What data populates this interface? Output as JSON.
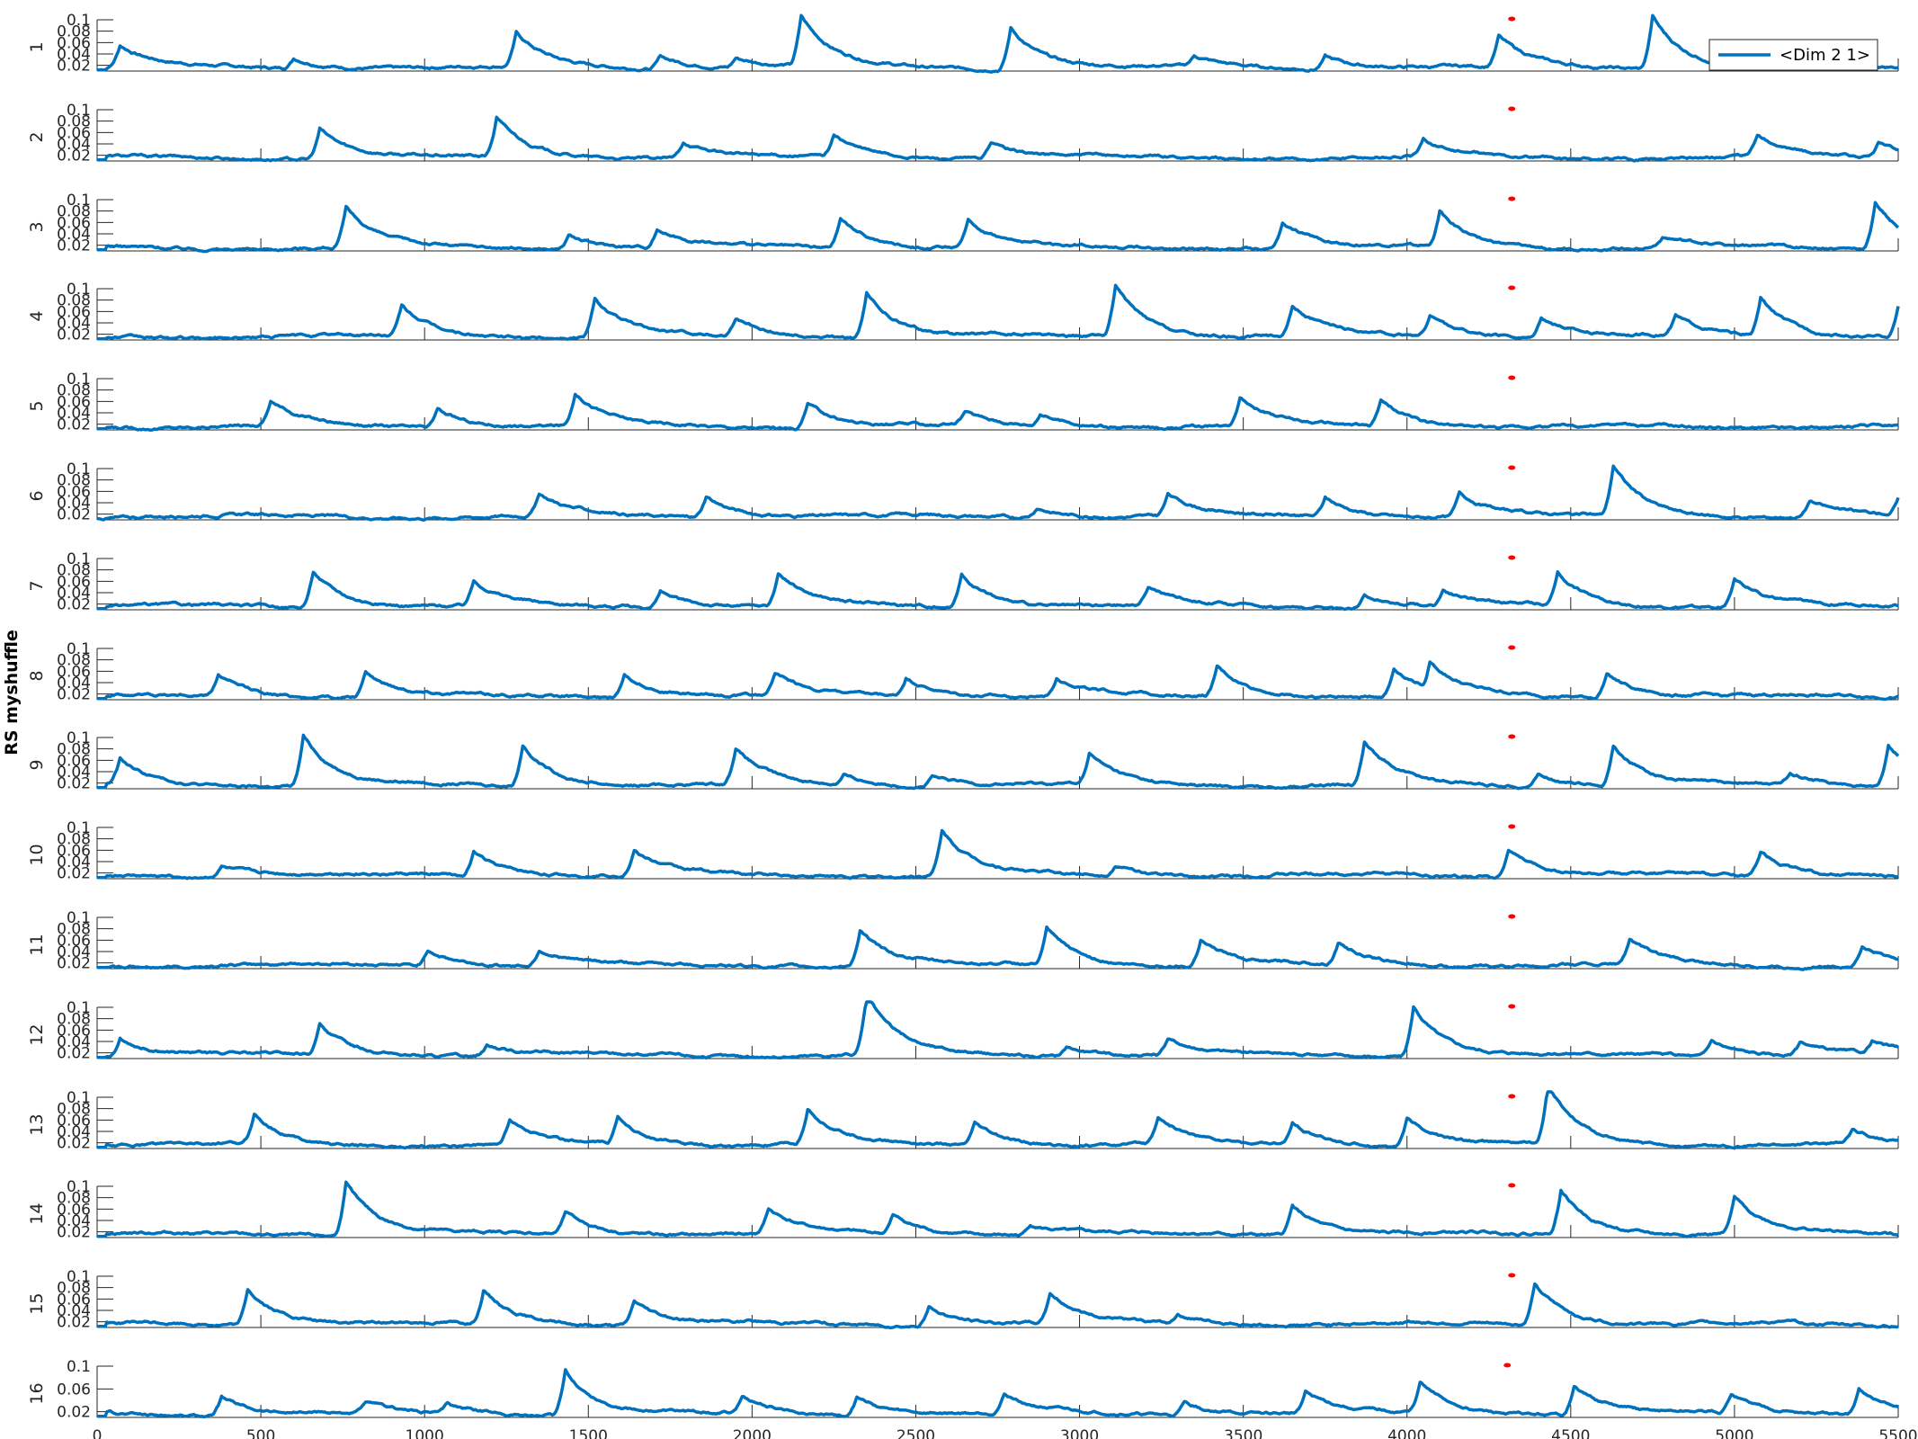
{
  "chart_data": {
    "type": "line",
    "ylabel": "RS myshuffle",
    "xlim": [
      0,
      5500
    ],
    "x_ticks": [
      0,
      500,
      1000,
      1500,
      2000,
      2500,
      3000,
      3500,
      4000,
      4500,
      5000,
      5500
    ],
    "ylim": [
      0.01,
      0.1
    ],
    "y_ticks": [
      0.02,
      0.04,
      0.06,
      0.08,
      0.1
    ],
    "panel_y_tick_labels": [
      "0.02",
      "0.04",
      "0.06",
      "0.08",
      "0.1"
    ],
    "last_panel_y_tick_labels": [
      "0.02",
      "0.06",
      "0.1"
    ],
    "legend": {
      "entries": [
        "<Dim 2 1>"
      ],
      "location": "top-right"
    },
    "series_color": "#0072BD",
    "marker_color": "#FF0000",
    "marker_x": 4320,
    "panels": [
      {
        "label": "1",
        "peaks": [
          [
            70,
            0.05
          ],
          [
            600,
            0.03
          ],
          [
            1280,
            0.07
          ],
          [
            1720,
            0.035
          ],
          [
            1950,
            0.03
          ],
          [
            2150,
            0.1
          ],
          [
            2790,
            0.085
          ],
          [
            3350,
            0.03
          ],
          [
            3750,
            0.035
          ],
          [
            4280,
            0.065
          ],
          [
            4750,
            0.105
          ]
        ]
      },
      {
        "label": "2",
        "peaks": [
          [
            680,
            0.065
          ],
          [
            1220,
            0.08
          ],
          [
            1790,
            0.04
          ],
          [
            2250,
            0.05
          ],
          [
            2730,
            0.04
          ],
          [
            4050,
            0.04
          ],
          [
            5070,
            0.05
          ],
          [
            5440,
            0.04
          ]
        ]
      },
      {
        "label": "3",
        "peaks": [
          [
            760,
            0.08
          ],
          [
            1440,
            0.035
          ],
          [
            1710,
            0.045
          ],
          [
            2270,
            0.065
          ],
          [
            2660,
            0.06
          ],
          [
            3620,
            0.06
          ],
          [
            4100,
            0.075
          ],
          [
            4780,
            0.03
          ],
          [
            5430,
            0.095
          ]
        ]
      },
      {
        "label": "4",
        "peaks": [
          [
            930,
            0.065
          ],
          [
            1520,
            0.08
          ],
          [
            1950,
            0.045
          ],
          [
            2350,
            0.09
          ],
          [
            3110,
            0.105
          ],
          [
            3650,
            0.065
          ],
          [
            4070,
            0.05
          ],
          [
            4410,
            0.05
          ],
          [
            4820,
            0.045
          ],
          [
            5080,
            0.08
          ],
          [
            5500,
            0.065
          ]
        ]
      },
      {
        "label": "5",
        "peaks": [
          [
            530,
            0.055
          ],
          [
            1040,
            0.045
          ],
          [
            1460,
            0.07
          ],
          [
            2170,
            0.055
          ],
          [
            2650,
            0.035
          ],
          [
            2880,
            0.035
          ],
          [
            3490,
            0.065
          ],
          [
            3920,
            0.06
          ]
        ]
      },
      {
        "label": "6",
        "peaks": [
          [
            1350,
            0.05
          ],
          [
            1860,
            0.05
          ],
          [
            2870,
            0.03
          ],
          [
            3270,
            0.05
          ],
          [
            3750,
            0.045
          ],
          [
            4160,
            0.055
          ],
          [
            4630,
            0.1
          ],
          [
            5230,
            0.04
          ],
          [
            5500,
            0.04
          ]
        ]
      },
      {
        "label": "7",
        "peaks": [
          [
            660,
            0.075
          ],
          [
            1150,
            0.055
          ],
          [
            1720,
            0.04
          ],
          [
            2080,
            0.07
          ],
          [
            2640,
            0.07
          ],
          [
            3210,
            0.045
          ],
          [
            3870,
            0.035
          ],
          [
            4110,
            0.04
          ],
          [
            4460,
            0.07
          ],
          [
            5000,
            0.065
          ]
        ]
      },
      {
        "label": "8",
        "peaks": [
          [
            370,
            0.05
          ],
          [
            820,
            0.055
          ],
          [
            1610,
            0.055
          ],
          [
            2070,
            0.05
          ],
          [
            2470,
            0.045
          ],
          [
            2930,
            0.045
          ],
          [
            3420,
            0.065
          ],
          [
            3960,
            0.06
          ],
          [
            4070,
            0.07
          ],
          [
            4610,
            0.055
          ]
        ]
      },
      {
        "label": "9",
        "peaks": [
          [
            70,
            0.055
          ],
          [
            630,
            0.1
          ],
          [
            1300,
            0.085
          ],
          [
            1950,
            0.075
          ],
          [
            2280,
            0.03
          ],
          [
            2550,
            0.03
          ],
          [
            3030,
            0.065
          ],
          [
            3870,
            0.09
          ],
          [
            4400,
            0.035
          ],
          [
            4630,
            0.085
          ],
          [
            5170,
            0.035
          ],
          [
            5470,
            0.085
          ]
        ]
      },
      {
        "label": "10",
        "peaks": [
          [
            380,
            0.03
          ],
          [
            1150,
            0.055
          ],
          [
            1640,
            0.055
          ],
          [
            2580,
            0.09
          ],
          [
            3110,
            0.03
          ],
          [
            4310,
            0.06
          ],
          [
            5080,
            0.055
          ]
        ]
      },
      {
        "label": "11",
        "peaks": [
          [
            1010,
            0.04
          ],
          [
            1350,
            0.04
          ],
          [
            2330,
            0.075
          ],
          [
            2900,
            0.075
          ],
          [
            3370,
            0.06
          ],
          [
            3790,
            0.05
          ],
          [
            4680,
            0.055
          ],
          [
            5390,
            0.045
          ]
        ]
      },
      {
        "label": "12",
        "peaks": [
          [
            70,
            0.045
          ],
          [
            680,
            0.065
          ],
          [
            1190,
            0.03
          ],
          [
            2350,
            0.115
          ],
          [
            2960,
            0.03
          ],
          [
            3270,
            0.04
          ],
          [
            4020,
            0.1
          ],
          [
            4930,
            0.04
          ],
          [
            5200,
            0.035
          ],
          [
            5420,
            0.035
          ]
        ]
      },
      {
        "label": "13",
        "peaks": [
          [
            480,
            0.065
          ],
          [
            1260,
            0.055
          ],
          [
            1590,
            0.06
          ],
          [
            2170,
            0.075
          ],
          [
            2680,
            0.05
          ],
          [
            3240,
            0.06
          ],
          [
            3650,
            0.05
          ],
          [
            4000,
            0.06
          ],
          [
            4430,
            0.115
          ],
          [
            5360,
            0.035
          ]
        ]
      },
      {
        "label": "14",
        "peaks": [
          [
            760,
            0.105
          ],
          [
            1430,
            0.05
          ],
          [
            2050,
            0.055
          ],
          [
            2430,
            0.045
          ],
          [
            2850,
            0.03
          ],
          [
            3650,
            0.065
          ],
          [
            4470,
            0.09
          ],
          [
            5000,
            0.075
          ]
        ]
      },
      {
        "label": "15",
        "peaks": [
          [
            460,
            0.075
          ],
          [
            1180,
            0.07
          ],
          [
            1640,
            0.055
          ],
          [
            2540,
            0.045
          ],
          [
            2910,
            0.065
          ],
          [
            3300,
            0.03
          ],
          [
            4390,
            0.085
          ]
        ]
      },
      {
        "label": "16",
        "peaks": [
          [
            380,
            0.045
          ],
          [
            820,
            0.03
          ],
          [
            1070,
            0.03
          ],
          [
            1430,
            0.09
          ],
          [
            1970,
            0.04
          ],
          [
            2320,
            0.045
          ],
          [
            2770,
            0.045
          ],
          [
            3320,
            0.035
          ],
          [
            3690,
            0.05
          ],
          [
            4040,
            0.065
          ],
          [
            4510,
            0.065
          ],
          [
            4990,
            0.045
          ],
          [
            5380,
            0.06
          ]
        ]
      }
    ]
  }
}
